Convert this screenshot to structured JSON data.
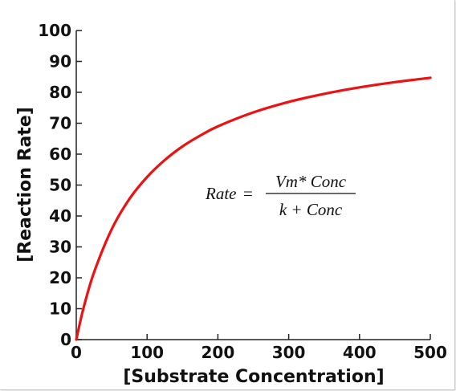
{
  "chart_data": {
    "type": "line",
    "xlabel": "[Substrate Concentration]",
    "ylabel": "[Reaction Rate]",
    "xlim": [
      0,
      500
    ],
    "ylim": [
      0,
      100
    ],
    "xticks": [
      "0",
      "100",
      "200",
      "300",
      "400",
      "500"
    ],
    "yticks": [
      "0",
      "10",
      "20",
      "30",
      "40",
      "50",
      "60",
      "70",
      "80",
      "90",
      "100"
    ],
    "grid": false,
    "series": [
      {
        "color": "#ee1111",
        "x": [
          0,
          10,
          25,
          50,
          75,
          100,
          125,
          150,
          175,
          200,
          250,
          300,
          350,
          400,
          450,
          500
        ],
        "y": [
          0,
          10,
          21.7,
          35.7,
          45.5,
          52.6,
          58.1,
          62.5,
          66.0,
          69.0,
          73.5,
          76.9,
          79.5,
          81.6,
          83.3,
          84.7
        ]
      }
    ],
    "annotation": {
      "lhs": "Rate",
      "equals": "=",
      "numerator": "Vm* Conc",
      "denominator": "k + Conc"
    }
  }
}
